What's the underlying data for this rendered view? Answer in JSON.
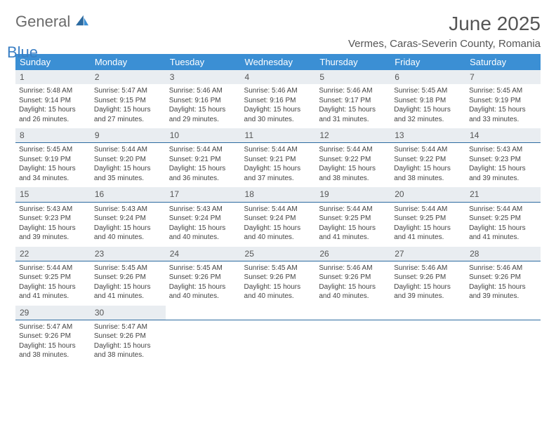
{
  "logo": {
    "text1": "General",
    "text2": "Blue"
  },
  "title": "June 2025",
  "location": "Vermes, Caras-Severin County, Romania",
  "header_bg": "#3b8fd4",
  "daynum_bg": "#e9edf1",
  "border_color": "#2b6aa0",
  "weekdays": [
    "Sunday",
    "Monday",
    "Tuesday",
    "Wednesday",
    "Thursday",
    "Friday",
    "Saturday"
  ],
  "weeks": [
    [
      {
        "n": "1",
        "sr": "5:48 AM",
        "ss": "9:14 PM",
        "dl": "15 hours and 26 minutes."
      },
      {
        "n": "2",
        "sr": "5:47 AM",
        "ss": "9:15 PM",
        "dl": "15 hours and 27 minutes."
      },
      {
        "n": "3",
        "sr": "5:46 AM",
        "ss": "9:16 PM",
        "dl": "15 hours and 29 minutes."
      },
      {
        "n": "4",
        "sr": "5:46 AM",
        "ss": "9:16 PM",
        "dl": "15 hours and 30 minutes."
      },
      {
        "n": "5",
        "sr": "5:46 AM",
        "ss": "9:17 PM",
        "dl": "15 hours and 31 minutes."
      },
      {
        "n": "6",
        "sr": "5:45 AM",
        "ss": "9:18 PM",
        "dl": "15 hours and 32 minutes."
      },
      {
        "n": "7",
        "sr": "5:45 AM",
        "ss": "9:19 PM",
        "dl": "15 hours and 33 minutes."
      }
    ],
    [
      {
        "n": "8",
        "sr": "5:45 AM",
        "ss": "9:19 PM",
        "dl": "15 hours and 34 minutes."
      },
      {
        "n": "9",
        "sr": "5:44 AM",
        "ss": "9:20 PM",
        "dl": "15 hours and 35 minutes."
      },
      {
        "n": "10",
        "sr": "5:44 AM",
        "ss": "9:21 PM",
        "dl": "15 hours and 36 minutes."
      },
      {
        "n": "11",
        "sr": "5:44 AM",
        "ss": "9:21 PM",
        "dl": "15 hours and 37 minutes."
      },
      {
        "n": "12",
        "sr": "5:44 AM",
        "ss": "9:22 PM",
        "dl": "15 hours and 38 minutes."
      },
      {
        "n": "13",
        "sr": "5:44 AM",
        "ss": "9:22 PM",
        "dl": "15 hours and 38 minutes."
      },
      {
        "n": "14",
        "sr": "5:43 AM",
        "ss": "9:23 PM",
        "dl": "15 hours and 39 minutes."
      }
    ],
    [
      {
        "n": "15",
        "sr": "5:43 AM",
        "ss": "9:23 PM",
        "dl": "15 hours and 39 minutes."
      },
      {
        "n": "16",
        "sr": "5:43 AM",
        "ss": "9:24 PM",
        "dl": "15 hours and 40 minutes."
      },
      {
        "n": "17",
        "sr": "5:43 AM",
        "ss": "9:24 PM",
        "dl": "15 hours and 40 minutes."
      },
      {
        "n": "18",
        "sr": "5:44 AM",
        "ss": "9:24 PM",
        "dl": "15 hours and 40 minutes."
      },
      {
        "n": "19",
        "sr": "5:44 AM",
        "ss": "9:25 PM",
        "dl": "15 hours and 41 minutes."
      },
      {
        "n": "20",
        "sr": "5:44 AM",
        "ss": "9:25 PM",
        "dl": "15 hours and 41 minutes."
      },
      {
        "n": "21",
        "sr": "5:44 AM",
        "ss": "9:25 PM",
        "dl": "15 hours and 41 minutes."
      }
    ],
    [
      {
        "n": "22",
        "sr": "5:44 AM",
        "ss": "9:25 PM",
        "dl": "15 hours and 41 minutes."
      },
      {
        "n": "23",
        "sr": "5:45 AM",
        "ss": "9:26 PM",
        "dl": "15 hours and 41 minutes."
      },
      {
        "n": "24",
        "sr": "5:45 AM",
        "ss": "9:26 PM",
        "dl": "15 hours and 40 minutes."
      },
      {
        "n": "25",
        "sr": "5:45 AM",
        "ss": "9:26 PM",
        "dl": "15 hours and 40 minutes."
      },
      {
        "n": "26",
        "sr": "5:46 AM",
        "ss": "9:26 PM",
        "dl": "15 hours and 40 minutes."
      },
      {
        "n": "27",
        "sr": "5:46 AM",
        "ss": "9:26 PM",
        "dl": "15 hours and 39 minutes."
      },
      {
        "n": "28",
        "sr": "5:46 AM",
        "ss": "9:26 PM",
        "dl": "15 hours and 39 minutes."
      }
    ],
    [
      {
        "n": "29",
        "sr": "5:47 AM",
        "ss": "9:26 PM",
        "dl": "15 hours and 38 minutes."
      },
      {
        "n": "30",
        "sr": "5:47 AM",
        "ss": "9:26 PM",
        "dl": "15 hours and 38 minutes."
      },
      null,
      null,
      null,
      null,
      null
    ]
  ],
  "labels": {
    "sunrise": "Sunrise: ",
    "sunset": "Sunset: ",
    "daylight": "Daylight: "
  }
}
